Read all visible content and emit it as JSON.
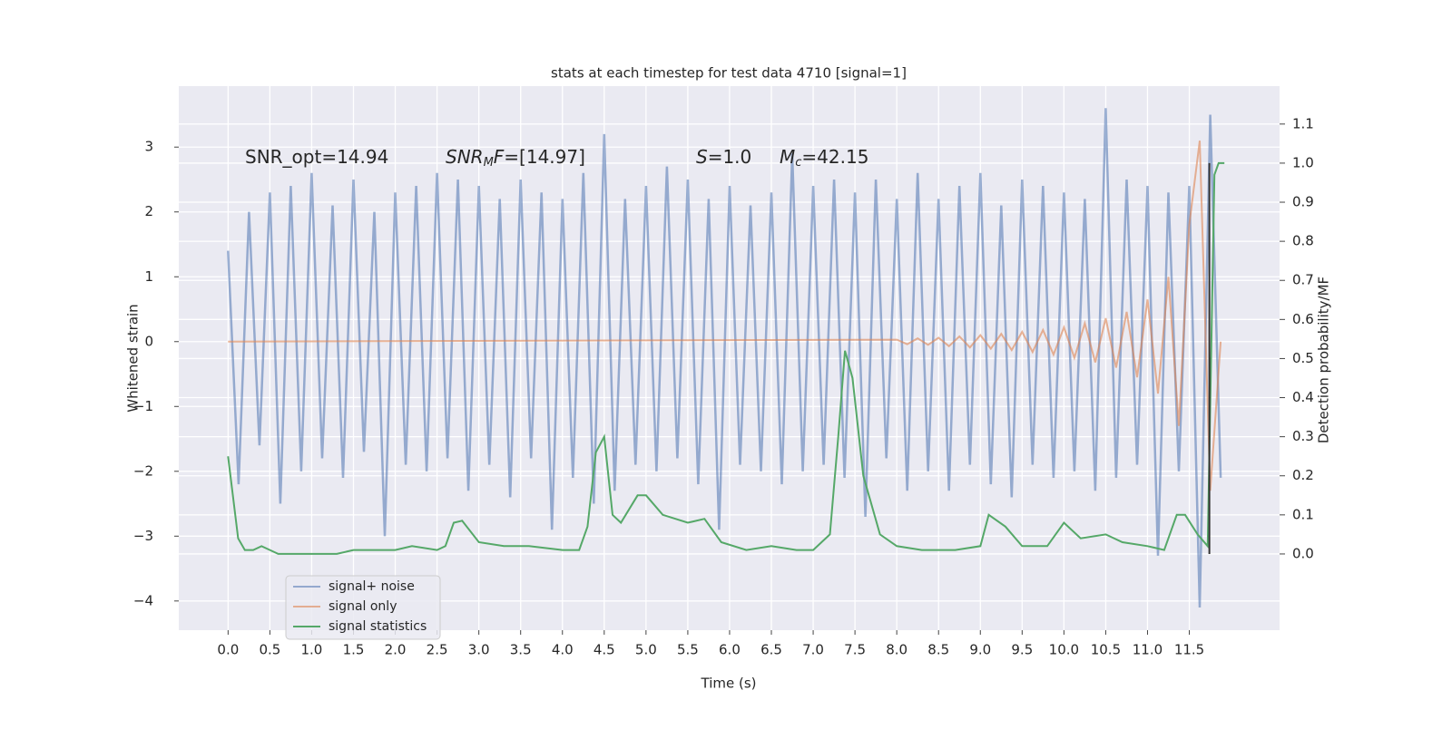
{
  "chart_data": {
    "type": "line",
    "title": "stats at each timestep for test data 4710 [signal=1]",
    "xlabel": "Time (s)",
    "ylabel": "Whitened strain",
    "y2label": "Detection probability/MF",
    "annotations": [
      [
        {
          "t": "SNR_opt=14.94",
          "style": "normal"
        }
      ],
      [
        {
          "t": "SNR",
          "style": "italic"
        },
        {
          "t": "M",
          "style": "sub"
        },
        {
          "t": "F",
          "style": "italic"
        },
        {
          "t": "=[14.97]",
          "style": "normal"
        }
      ],
      [
        {
          "t": "S",
          "style": "italic"
        },
        {
          "t": "=1.0",
          "style": "normal"
        }
      ],
      [
        {
          "t": "M",
          "style": "italic"
        },
        {
          "t": "c",
          "style": "sub"
        },
        {
          "t": "=42.15",
          "style": "normal"
        }
      ]
    ],
    "xlim": [
      -0.59,
      12.58
    ],
    "ylim": [
      -4.45,
      3.94
    ],
    "y2lim": [
      -0.195,
      1.197
    ],
    "xticks": [
      {
        "value": 0,
        "label": "0.0"
      },
      0.5,
      {
        "value": 1,
        "label": "1.0"
      },
      1.5,
      {
        "value": 2,
        "label": "2.0"
      },
      2.5,
      {
        "value": 3,
        "label": "3.0"
      },
      3.5,
      {
        "value": 4,
        "label": "4.0"
      },
      4.5,
      {
        "value": 5,
        "label": "5.0"
      },
      5.5,
      {
        "value": 6,
        "label": "6.0"
      },
      6.5,
      {
        "value": 7,
        "label": "7.0"
      },
      7.5,
      {
        "value": 8,
        "label": "8.0"
      },
      8.5,
      {
        "value": 9,
        "label": "9.0"
      },
      9.5,
      {
        "value": 10,
        "label": "10.0"
      },
      10.5,
      {
        "value": 11,
        "label": "11.0"
      },
      11.5
    ],
    "yticks": [
      {
        "value": -4,
        "label": "−4"
      },
      {
        "value": -3,
        "label": "−3"
      },
      {
        "value": -2,
        "label": "−2"
      },
      {
        "value": -1,
        "label": "−1"
      },
      0,
      1,
      2,
      3
    ],
    "y2ticks": [
      {
        "value": 0,
        "label": "0.0"
      },
      0.1,
      0.2,
      0.3,
      0.4,
      0.5,
      0.6,
      0.7,
      0.8,
      0.9,
      {
        "value": 1,
        "label": "1.0"
      },
      1.1
    ],
    "grid": true,
    "legend": "lower left",
    "marker_x": 11.74,
    "marker_color": "#333333",
    "series": [
      {
        "name": "signal+ noise",
        "color": "#4c72b0",
        "opacity": 0.55,
        "x": [
          0,
          0.125,
          0.25,
          0.375,
          0.5,
          0.625,
          0.75,
          0.875,
          1,
          1.125,
          1.25,
          1.375,
          1.5,
          1.625,
          1.75,
          1.875,
          2,
          2.125,
          2.25,
          2.375,
          2.5,
          2.625,
          2.75,
          2.875,
          3,
          3.125,
          3.25,
          3.375,
          3.5,
          3.625,
          3.75,
          3.875,
          4,
          4.125,
          4.25,
          4.375,
          4.5,
          4.625,
          4.75,
          4.875,
          5,
          5.125,
          5.25,
          5.375,
          5.5,
          5.625,
          5.75,
          5.875,
          6,
          6.125,
          6.25,
          6.375,
          6.5,
          6.625,
          6.75,
          6.875,
          7,
          7.125,
          7.25,
          7.375,
          7.5,
          7.625,
          7.75,
          7.875,
          8,
          8.125,
          8.25,
          8.375,
          8.5,
          8.625,
          8.75,
          8.875,
          9,
          9.125,
          9.25,
          9.375,
          9.5,
          9.625,
          9.75,
          9.875,
          10,
          10.125,
          10.25,
          10.375,
          10.5,
          10.625,
          10.75,
          10.875,
          11,
          11.125,
          11.25,
          11.375,
          11.5,
          11.625,
          11.75,
          11.875
        ],
        "values": [
          1.4,
          -2.2,
          2.0,
          -1.6,
          2.3,
          -2.5,
          2.4,
          -2.0,
          2.6,
          -1.8,
          2.1,
          -2.1,
          2.5,
          -1.7,
          2.0,
          -3.0,
          2.3,
          -1.9,
          2.4,
          -2.0,
          2.6,
          -1.8,
          2.5,
          -2.3,
          2.4,
          -1.9,
          2.2,
          -2.4,
          2.5,
          -1.8,
          2.3,
          -2.9,
          2.2,
          -2.1,
          2.6,
          -2.5,
          3.2,
          -2.3,
          2.2,
          -1.9,
          2.4,
          -2.0,
          2.7,
          -1.8,
          2.5,
          -2.2,
          2.2,
          -2.9,
          2.4,
          -1.9,
          2.1,
          -2.0,
          2.3,
          -2.2,
          2.9,
          -2.0,
          2.4,
          -1.9,
          2.5,
          -2.1,
          2.3,
          -2.7,
          2.5,
          -1.8,
          2.2,
          -2.3,
          2.6,
          -2.0,
          2.2,
          -2.3,
          2.4,
          -1.9,
          2.6,
          -2.2,
          2.1,
          -2.4,
          2.5,
          -1.9,
          2.4,
          -2.1,
          2.3,
          -2.0,
          2.2,
          -2.3,
          3.6,
          -2.1,
          2.5,
          -1.9,
          2.4,
          -3.3,
          2.3,
          -2.0,
          2.4,
          -4.1,
          3.5,
          -2.1
        ]
      },
      {
        "name": "signal only",
        "color": "#dd8452",
        "opacity": 0.6,
        "x": [
          0,
          8,
          8.125,
          8.25,
          8.375,
          8.5,
          8.625,
          8.75,
          8.875,
          9,
          9.125,
          9.25,
          9.375,
          9.5,
          9.625,
          9.75,
          9.875,
          10,
          10.125,
          10.25,
          10.375,
          10.5,
          10.625,
          10.75,
          10.875,
          11,
          11.125,
          11.25,
          11.375,
          11.5,
          11.625,
          11.75,
          11.875
        ],
        "values": [
          0,
          0.03,
          -0.04,
          0.05,
          -0.05,
          0.06,
          -0.07,
          0.08,
          -0.09,
          0.1,
          -0.11,
          0.12,
          -0.13,
          0.15,
          -0.16,
          0.18,
          -0.2,
          0.22,
          -0.25,
          0.28,
          -0.32,
          0.36,
          -0.4,
          0.46,
          -0.55,
          0.65,
          -0.8,
          1.0,
          -1.3,
          1.8,
          3.1,
          -2.3,
          0
        ]
      },
      {
        "name": "signal statistics",
        "color": "#55a868",
        "opacity": 1,
        "axis": "y2",
        "x": [
          0,
          0.12,
          0.2,
          0.3,
          0.4,
          0.5,
          0.6,
          1,
          1.3,
          1.5,
          2,
          2.2,
          2.5,
          2.6,
          2.7,
          2.8,
          3,
          3.3,
          3.6,
          4,
          4.2,
          4.3,
          4.4,
          4.5,
          4.6,
          4.7,
          4.9,
          5,
          5.2,
          5.5,
          5.7,
          5.9,
          6.2,
          6.5,
          6.8,
          7,
          7.2,
          7.3,
          7.38,
          7.47,
          7.6,
          7.8,
          8,
          8.3,
          8.7,
          9,
          9.1,
          9.3,
          9.5,
          9.8,
          10,
          10.2,
          10.5,
          10.7,
          11,
          11.2,
          11.35,
          11.45,
          11.6,
          11.72,
          11.8,
          11.85,
          11.92
        ],
        "values": [
          0.25,
          0.04,
          0.01,
          0.01,
          0.02,
          0.01,
          0,
          0,
          0,
          0.01,
          0.01,
          0.02,
          0.01,
          0.02,
          0.08,
          0.085,
          0.03,
          0.02,
          0.02,
          0.01,
          0.01,
          0.07,
          0.26,
          0.3,
          0.1,
          0.08,
          0.15,
          0.15,
          0.1,
          0.08,
          0.09,
          0.03,
          0.01,
          0.02,
          0.01,
          0.01,
          0.05,
          0.3,
          0.52,
          0.45,
          0.2,
          0.05,
          0.02,
          0.01,
          0.01,
          0.02,
          0.1,
          0.07,
          0.02,
          0.02,
          0.08,
          0.04,
          0.05,
          0.03,
          0.02,
          0.01,
          0.1,
          0.1,
          0.05,
          0.02,
          0.97,
          1.0,
          1.0
        ]
      }
    ]
  }
}
